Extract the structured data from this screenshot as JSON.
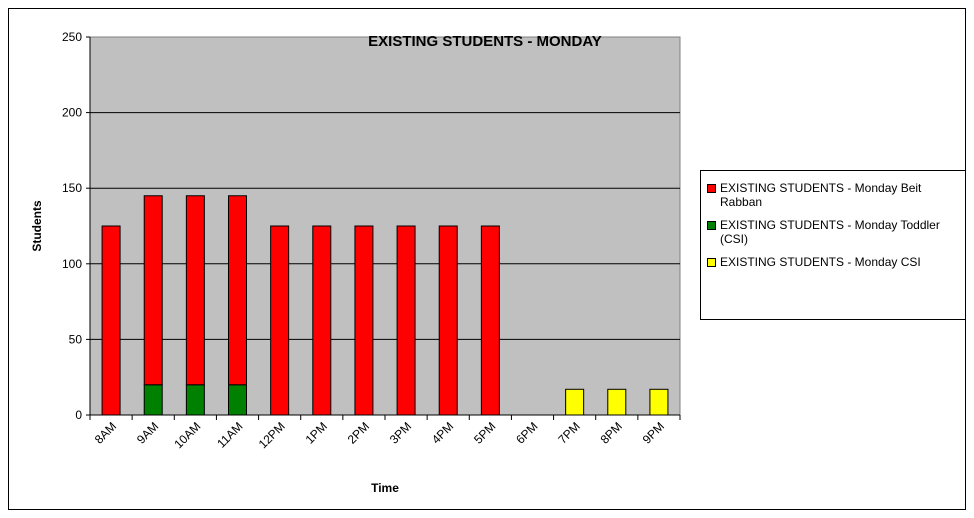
{
  "chart_data": {
    "type": "stacked_bar",
    "title": "EXISTING STUDENTS - MONDAY",
    "x_label": "Time",
    "y_label": "Students",
    "categories": [
      "8AM",
      "9AM",
      "10AM",
      "11AM",
      "12PM",
      "1PM",
      "2PM",
      "3PM",
      "4PM",
      "5PM",
      "6PM",
      "7PM",
      "8PM",
      "9PM"
    ],
    "series": [
      {
        "name": "EXISTING STUDENTS - Monday Beit Rabban",
        "color": "#ff0000",
        "values": [
          125,
          125,
          125,
          125,
          125,
          125,
          125,
          125,
          125,
          125,
          null,
          null,
          null,
          null
        ]
      },
      {
        "name": "EXISTING STUDENTS - Monday Toddler (CSI)",
        "color": "#008000",
        "values": [
          null,
          20,
          20,
          20,
          null,
          null,
          null,
          null,
          null,
          null,
          null,
          null,
          null,
          null
        ]
      },
      {
        "name": "EXISTING STUDENTS - Monday CSI",
        "color": "#ffff00",
        "values": [
          null,
          null,
          null,
          null,
          null,
          null,
          null,
          null,
          null,
          null,
          null,
          17,
          17,
          17
        ]
      }
    ],
    "ylim": [
      0,
      250
    ],
    "yticks": [
      0,
      50,
      100,
      150,
      200,
      250
    ],
    "grid": true,
    "legend": "right"
  }
}
